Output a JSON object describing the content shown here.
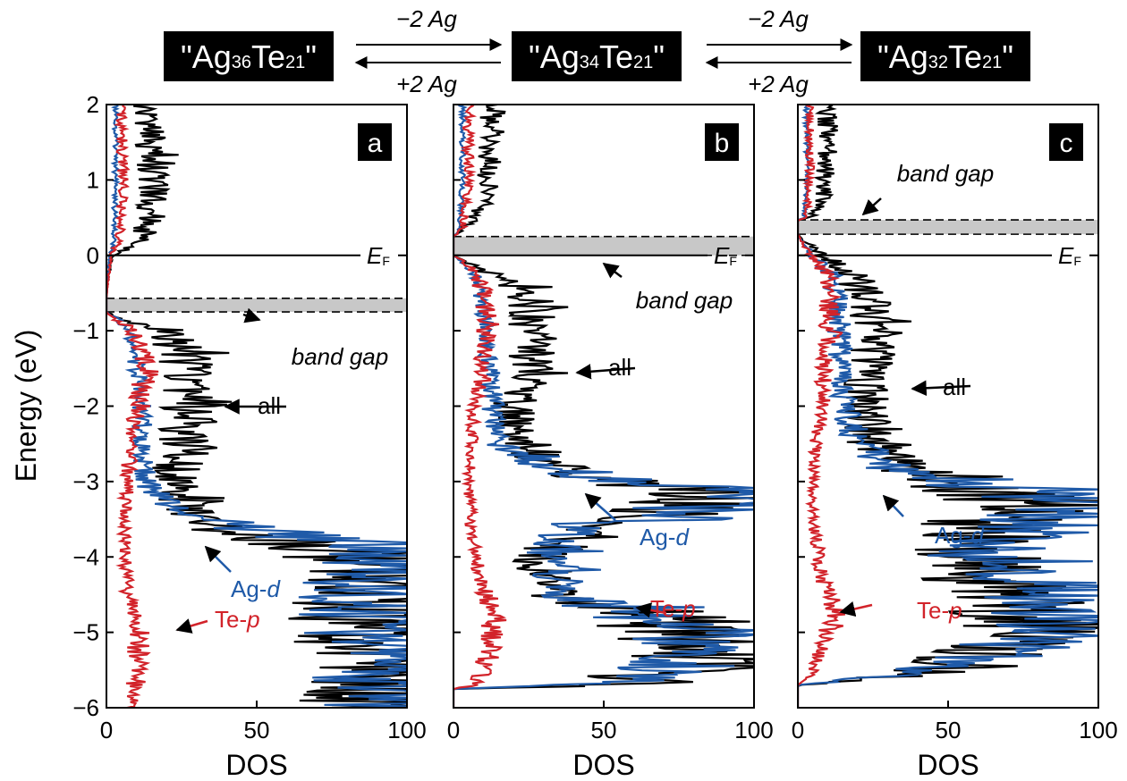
{
  "colors": {
    "all": "#000000",
    "ag_d": "#1f5aa8",
    "te_p": "#d2232a",
    "gap": "#c8c8c8",
    "formula_bg": "#000000",
    "formula_text": "#ffffff"
  },
  "formulas": [
    {
      "pre": "\"Ag",
      "ag_sub": "36",
      "te": "Te",
      "te_sub": "21",
      "post": "\""
    },
    {
      "pre": "\"Ag",
      "ag_sub": "34",
      "te": "Te",
      "te_sub": "21",
      "post": "\""
    },
    {
      "pre": "\"Ag",
      "ag_sub": "32",
      "te": "Te",
      "te_sub": "21",
      "post": "\""
    }
  ],
  "arrows": [
    {
      "forward": "−2 Ag",
      "backward": "+2 Ag"
    },
    {
      "forward": "−2 Ag",
      "backward": "+2 Ag"
    }
  ],
  "chart_data": [
    {
      "type": "line",
      "panel_label": "a",
      "formula": "\"Ag36Te21\"",
      "ylabel": "Energy (eV)",
      "xlabel": "DOS",
      "xlim": [
        0,
        100
      ],
      "ylim": [
        -6,
        2
      ],
      "x_ticks": [
        "0",
        "50",
        "100"
      ],
      "y_ticks": [
        "−6",
        "−5",
        "−4",
        "−3",
        "−2",
        "−1",
        "0",
        "1",
        "2"
      ],
      "fermi_label": "E",
      "fermi_sub": "F",
      "band_gap": {
        "label": "band gap",
        "range": [
          -0.75,
          -0.57
        ]
      },
      "series": [
        {
          "name": "all",
          "key": "all",
          "label": "all",
          "profile": [
            [
              2,
              13
            ],
            [
              1.5,
              15
            ],
            [
              1,
              16
            ],
            [
              0.5,
              15
            ],
            [
              0.2,
              11
            ],
            [
              0.05,
              5
            ],
            [
              0,
              2
            ],
            [
              -0.3,
              0.5
            ],
            [
              -0.57,
              0
            ],
            [
              -0.75,
              0
            ],
            [
              -0.85,
              6
            ],
            [
              -1,
              20
            ],
            [
              -1.3,
              26
            ],
            [
              -1.7,
              26
            ],
            [
              -2.1,
              28
            ],
            [
              -2.5,
              26
            ],
            [
              -3,
              22
            ],
            [
              -3.2,
              25
            ],
            [
              -3.5,
              30
            ],
            [
              -3.7,
              40
            ],
            [
              -3.8,
              60
            ],
            [
              -4,
              90
            ],
            [
              -4.3,
              92
            ],
            [
              -4.7,
              90
            ],
            [
              -5,
              92
            ],
            [
              -5.5,
              98
            ],
            [
              -5.8,
              95
            ],
            [
              -6,
              90
            ]
          ]
        },
        {
          "name": "Ag-d",
          "key": "ag_d",
          "label": "Ag-d",
          "profile": [
            [
              2,
              3
            ],
            [
              1,
              3
            ],
            [
              0.2,
              2.5
            ],
            [
              0,
              1
            ],
            [
              -0.57,
              0
            ],
            [
              -0.75,
              0
            ],
            [
              -0.85,
              4
            ],
            [
              -1,
              8
            ],
            [
              -1.5,
              10
            ],
            [
              -2,
              12
            ],
            [
              -2.5,
              12
            ],
            [
              -3,
              13
            ],
            [
              -3.3,
              20
            ],
            [
              -3.5,
              35
            ],
            [
              -3.7,
              60
            ],
            [
              -3.8,
              90
            ],
            [
              -4,
              92
            ],
            [
              -4.3,
              90
            ],
            [
              -4.7,
              88
            ],
            [
              -5,
              90
            ],
            [
              -5.5,
              95
            ],
            [
              -5.8,
              92
            ],
            [
              -6,
              85
            ]
          ]
        },
        {
          "name": "Te-p",
          "key": "te_p",
          "label": "Te-p",
          "profile": [
            [
              2,
              5
            ],
            [
              1,
              5.5
            ],
            [
              0.2,
              4.5
            ],
            [
              0,
              1.5
            ],
            [
              -0.57,
              0
            ],
            [
              -0.75,
              0
            ],
            [
              -0.85,
              3
            ],
            [
              -1,
              10
            ],
            [
              -1.5,
              13
            ],
            [
              -2,
              11
            ],
            [
              -2.5,
              8
            ],
            [
              -3,
              7
            ],
            [
              -3.5,
              6
            ],
            [
              -4,
              6
            ],
            [
              -4.5,
              7
            ],
            [
              -5,
              11
            ],
            [
              -5.5,
              10
            ],
            [
              -6,
              9
            ]
          ]
        }
      ]
    },
    {
      "type": "line",
      "panel_label": "b",
      "formula": "\"Ag34Te21\"",
      "ylabel": "",
      "xlabel": "DOS",
      "xlim": [
        0,
        100
      ],
      "ylim": [
        -6,
        2
      ],
      "x_ticks": [
        "0",
        "50",
        "100"
      ],
      "y_ticks": [],
      "fermi_label": "E",
      "fermi_sub": "F",
      "band_gap": {
        "label": "band gap",
        "range": [
          0.0,
          0.25
        ]
      },
      "series": [
        {
          "name": "all",
          "key": "all",
          "label": "all",
          "profile": [
            [
              2,
              13
            ],
            [
              1.5,
              13
            ],
            [
              1,
              12
            ],
            [
              0.7,
              10
            ],
            [
              0.5,
              7
            ],
            [
              0.35,
              3
            ],
            [
              0.25,
              0
            ],
            [
              0,
              0
            ],
            [
              -0.1,
              4
            ],
            [
              -0.2,
              10
            ],
            [
              -0.5,
              25
            ],
            [
              -1,
              26
            ],
            [
              -1.5,
              25
            ],
            [
              -2,
              20
            ],
            [
              -2.5,
              22
            ],
            [
              -2.8,
              35
            ],
            [
              -3,
              55
            ],
            [
              -3.1,
              88
            ],
            [
              -3.3,
              80
            ],
            [
              -3.6,
              40
            ],
            [
              -4,
              30
            ],
            [
              -4.5,
              35
            ],
            [
              -4.8,
              60
            ],
            [
              -5,
              80
            ],
            [
              -5.3,
              85
            ],
            [
              -5.5,
              80
            ],
            [
              -5.7,
              50
            ],
            [
              -5.75,
              0
            ],
            [
              -6,
              0
            ]
          ]
        },
        {
          "name": "Ag-d",
          "key": "ag_d",
          "label": "Ag-d",
          "profile": [
            [
              2,
              3
            ],
            [
              1,
              3
            ],
            [
              0.35,
              2
            ],
            [
              0.25,
              0
            ],
            [
              0,
              0
            ],
            [
              -0.1,
              3
            ],
            [
              -0.3,
              8
            ],
            [
              -1,
              11
            ],
            [
              -1.5,
              12
            ],
            [
              -2,
              13
            ],
            [
              -2.5,
              15
            ],
            [
              -2.8,
              30
            ],
            [
              -3,
              60
            ],
            [
              -3.1,
              95
            ],
            [
              -3.3,
              90
            ],
            [
              -3.6,
              40
            ],
            [
              -4,
              30
            ],
            [
              -4.5,
              38
            ],
            [
              -4.8,
              65
            ],
            [
              -5,
              85
            ],
            [
              -5.3,
              80
            ],
            [
              -5.5,
              75
            ],
            [
              -5.7,
              45
            ],
            [
              -5.75,
              0
            ],
            [
              -6,
              0
            ]
          ]
        },
        {
          "name": "Te-p",
          "key": "te_p",
          "label": "Te-p",
          "profile": [
            [
              2,
              5
            ],
            [
              1,
              5
            ],
            [
              0.35,
              3
            ],
            [
              0.25,
              0
            ],
            [
              0,
              0
            ],
            [
              -0.1,
              4
            ],
            [
              -0.3,
              9
            ],
            [
              -1,
              12
            ],
            [
              -1.5,
              10
            ],
            [
              -2,
              7
            ],
            [
              -2.5,
              6
            ],
            [
              -3,
              5
            ],
            [
              -3.5,
              6
            ],
            [
              -4,
              7
            ],
            [
              -4.5,
              11
            ],
            [
              -5,
              14
            ],
            [
              -5.3,
              12
            ],
            [
              -5.5,
              10
            ],
            [
              -5.7,
              8
            ],
            [
              -5.75,
              0
            ],
            [
              -6,
              0
            ]
          ]
        }
      ]
    },
    {
      "type": "line",
      "panel_label": "c",
      "formula": "\"Ag32Te21\"",
      "ylabel": "",
      "xlabel": "DOS",
      "xlim": [
        0,
        100
      ],
      "ylim": [
        -6,
        2
      ],
      "x_ticks": [
        "0",
        "50",
        "100"
      ],
      "y_ticks": [],
      "fermi_label": "E",
      "fermi_sub": "F",
      "band_gap": {
        "label": "band gap",
        "range": [
          0.28,
          0.47
        ]
      },
      "series": [
        {
          "name": "all",
          "key": "all",
          "label": "all",
          "profile": [
            [
              2,
              10
            ],
            [
              1.5,
              10
            ],
            [
              1,
              9
            ],
            [
              0.7,
              8
            ],
            [
              0.5,
              4
            ],
            [
              0.47,
              0
            ],
            [
              0.28,
              0
            ],
            [
              0.2,
              2
            ],
            [
              0,
              8
            ],
            [
              -0.3,
              20
            ],
            [
              -1,
              26
            ],
            [
              -1.5,
              25
            ],
            [
              -2,
              22
            ],
            [
              -2.5,
              25
            ],
            [
              -2.9,
              40
            ],
            [
              -3.1,
              60
            ],
            [
              -3.3,
              80
            ],
            [
              -3.6,
              60
            ],
            [
              -4,
              55
            ],
            [
              -4.5,
              70
            ],
            [
              -5,
              80
            ],
            [
              -5.3,
              60
            ],
            [
              -5.5,
              50
            ],
            [
              -5.6,
              30
            ],
            [
              -5.7,
              0
            ],
            [
              -6,
              0
            ]
          ]
        },
        {
          "name": "Ag-d",
          "key": "ag_d",
          "label": "Ag-d",
          "profile": [
            [
              2,
              3
            ],
            [
              1,
              3
            ],
            [
              0.5,
              2
            ],
            [
              0.47,
              0
            ],
            [
              0.28,
              0
            ],
            [
              0.2,
              1
            ],
            [
              0,
              5
            ],
            [
              -0.3,
              12
            ],
            [
              -1,
              14
            ],
            [
              -1.5,
              14
            ],
            [
              -2,
              15
            ],
            [
              -2.5,
              20
            ],
            [
              -2.9,
              35
            ],
            [
              -3.1,
              70
            ],
            [
              -3.3,
              95
            ],
            [
              -3.6,
              80
            ],
            [
              -4,
              60
            ],
            [
              -4.5,
              85
            ],
            [
              -5,
              90
            ],
            [
              -5.3,
              65
            ],
            [
              -5.5,
              40
            ],
            [
              -5.6,
              25
            ],
            [
              -5.7,
              0
            ],
            [
              -6,
              0
            ]
          ]
        },
        {
          "name": "Te-p",
          "key": "te_p",
          "label": "Te-p",
          "profile": [
            [
              2,
              4
            ],
            [
              1,
              4
            ],
            [
              0.5,
              3
            ],
            [
              0.47,
              0
            ],
            [
              0.28,
              0
            ],
            [
              0.2,
              1
            ],
            [
              0,
              4
            ],
            [
              -0.3,
              10
            ],
            [
              -1,
              11
            ],
            [
              -1.5,
              9
            ],
            [
              -2,
              8
            ],
            [
              -2.5,
              6
            ],
            [
              -3,
              5
            ],
            [
              -3.5,
              5
            ],
            [
              -4,
              7
            ],
            [
              -4.5,
              10
            ],
            [
              -4.8,
              13
            ],
            [
              -5,
              10
            ],
            [
              -5.3,
              7
            ],
            [
              -5.5,
              5
            ],
            [
              -5.6,
              4
            ],
            [
              -5.7,
              0
            ],
            [
              -6,
              0
            ]
          ]
        }
      ]
    }
  ]
}
